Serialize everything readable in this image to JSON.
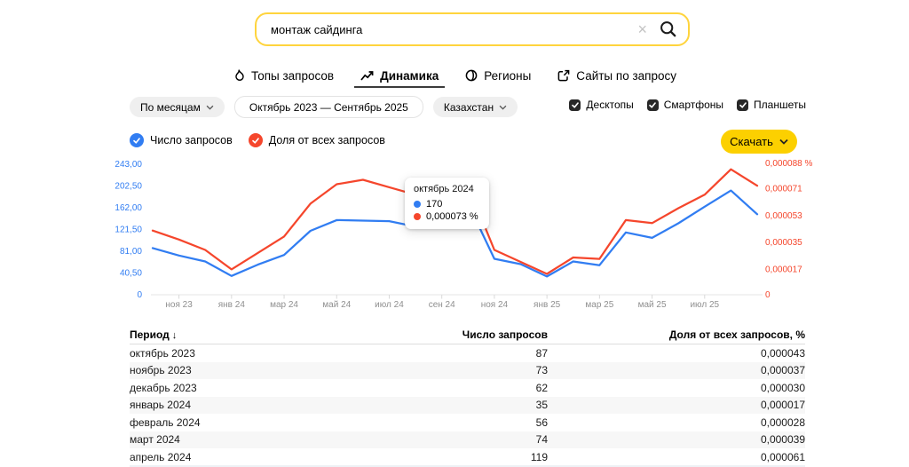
{
  "colors": {
    "brand_yellow": "#fcd000",
    "search_border_yellow": "#ffd43d",
    "blue": "#317df2",
    "red": "#f5462c",
    "axis_gray": "#8f8f8f",
    "checkbox_dark": "#282828"
  },
  "search": {
    "value": "монтаж сайдинга",
    "clear_icon": "×"
  },
  "tabs": [
    {
      "id": "tops",
      "icon": "flame",
      "label": "Топы запросов",
      "active": false
    },
    {
      "id": "dynamics",
      "icon": "trend",
      "label": "Динамика",
      "active": true
    },
    {
      "id": "regions",
      "icon": "globe",
      "label": "Регионы",
      "active": false
    },
    {
      "id": "sites",
      "icon": "external",
      "label": "Сайты по запросу",
      "active": false
    }
  ],
  "filters": {
    "grouping": "По месяцам",
    "date_range": "Октябрь 2023 — Сентябрь 2025",
    "region": "Казахстан",
    "devices": [
      {
        "label": "Десктопы",
        "checked": true
      },
      {
        "label": "Смартфоны",
        "checked": true
      },
      {
        "label": "Планшеты",
        "checked": true
      }
    ]
  },
  "legend": [
    {
      "label": "Число запросов",
      "color_key": "blue"
    },
    {
      "label": "Доля от всех запросов",
      "color_key": "red"
    }
  ],
  "download_label": "Скачать",
  "tooltip": {
    "title": "октябрь 2024",
    "requests_value": "170",
    "share_value": "0,000073 %"
  },
  "chart_data": {
    "type": "line",
    "x_range": "Октябрь 2023 — Сентябрь 2025",
    "n_points": 24,
    "x_tick_labels": [
      {
        "index": 1,
        "label": "ноя 23"
      },
      {
        "index": 3,
        "label": "янв 24"
      },
      {
        "index": 5,
        "label": "мар 24"
      },
      {
        "index": 7,
        "label": "май 24"
      },
      {
        "index": 9,
        "label": "июл 24"
      },
      {
        "index": 11,
        "label": "сен 24"
      },
      {
        "index": 13,
        "label": "ноя 24"
      },
      {
        "index": 15,
        "label": "янв 25"
      },
      {
        "index": 17,
        "label": "мар 25"
      },
      {
        "index": 19,
        "label": "май 25"
      },
      {
        "index": 21,
        "label": "июл 25"
      }
    ],
    "left_axis": {
      "max": 243,
      "ticks": [
        {
          "label": "243,00",
          "value": 243
        },
        {
          "label": "202,50",
          "value": 202.5
        },
        {
          "label": "162,00",
          "value": 162
        },
        {
          "label": "121,50",
          "value": 121.5
        },
        {
          "label": "81,00",
          "value": 81
        },
        {
          "label": "40,50",
          "value": 40.5
        },
        {
          "label": "0",
          "value": 0
        }
      ]
    },
    "right_axis": {
      "max": 8.8e-05,
      "ticks": [
        {
          "label": "0,000088 %",
          "value": 8.8e-05
        },
        {
          "label": "0,000071",
          "value": 7.1e-05
        },
        {
          "label": "0,000053",
          "value": 5.3e-05
        },
        {
          "label": "0,000035",
          "value": 3.5e-05
        },
        {
          "label": "0,000017",
          "value": 1.7e-05
        },
        {
          "label": "0",
          "value": 0
        }
      ]
    },
    "series": [
      {
        "name": "Число запросов",
        "axis": "left",
        "color_key": "blue",
        "values": [
          87,
          73,
          62,
          35,
          56,
          74,
          119,
          139,
          138,
          137,
          127,
          146,
          170,
          67,
          57,
          34,
          62,
          55,
          116,
          106,
          133,
          164,
          194,
          150
        ]
      },
      {
        "name": "Доля от всех запросов",
        "axis": "right",
        "color_key": "red",
        "values": [
          4.3e-05,
          3.7e-05,
          3e-05,
          1.7e-05,
          2.8e-05,
          3.9e-05,
          6.1e-05,
          7.4e-05,
          7.7e-05,
          7.2e-05,
          6.7e-05,
          6.8e-05,
          7.3e-05,
          3e-05,
          2.2e-05,
          1.4e-05,
          2.5e-05,
          2.4e-05,
          5e-05,
          4.8e-05,
          5.8e-05,
          6.7e-05,
          8.4e-05,
          7.3e-05
        ]
      }
    ],
    "highlight": {
      "index": 12,
      "label": "октябрь 2024"
    },
    "grid": false,
    "legend_position": "top-left"
  },
  "table": {
    "columns": [
      "Период",
      "Число запросов",
      "Доля от всех запросов, %"
    ],
    "sort_icon": "↓",
    "rows": [
      {
        "period": "октябрь 2023",
        "requests": "87",
        "share": "0,000043"
      },
      {
        "period": "ноябрь 2023",
        "requests": "73",
        "share": "0,000037"
      },
      {
        "period": "декабрь 2023",
        "requests": "62",
        "share": "0,000030"
      },
      {
        "period": "январь 2024",
        "requests": "35",
        "share": "0,000017"
      },
      {
        "period": "февраль 2024",
        "requests": "56",
        "share": "0,000028"
      },
      {
        "period": "март 2024",
        "requests": "74",
        "share": "0,000039"
      },
      {
        "period": "апрель 2024",
        "requests": "119",
        "share": "0,000061"
      }
    ]
  }
}
